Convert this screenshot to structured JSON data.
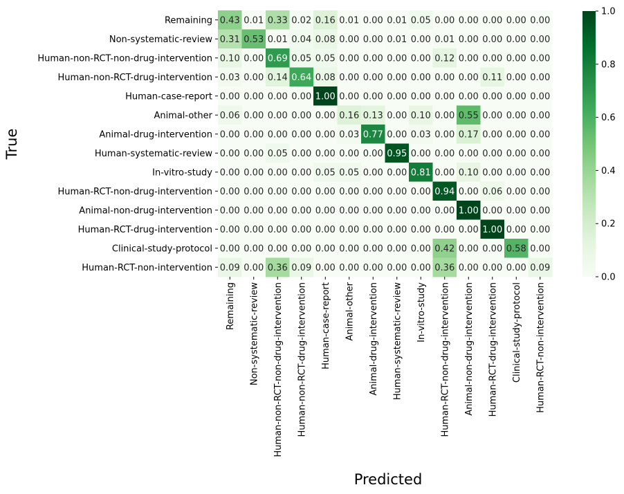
{
  "chart_data": {
    "type": "heatmap",
    "title": "",
    "xlabel": "Predicted",
    "ylabel": "True",
    "row_labels": [
      "Remaining",
      "Non-systematic-review",
      "Human-non-RCT-non-drug-intervention",
      "Human-non-RCT-drug-intervention",
      "Human-case-report",
      "Animal-other",
      "Animal-drug-intervention",
      "Human-systematic-review",
      "In-vitro-study",
      "Human-RCT-non-drug-intervention",
      "Animal-non-drug-intervention",
      "Human-RCT-drug-intervention",
      "Clinical-study-protocol",
      "Human-RCT-non-intervention"
    ],
    "col_labels": [
      "Remaining",
      "Non-systematic-review",
      "Human-non-RCT-non-drug-intervention",
      "Human-non-RCT-drug-intervention",
      "Human-case-report",
      "Animal-other",
      "Animal-drug-intervention",
      "Human-systematic-review",
      "In-vitro-study",
      "Human-RCT-non-drug-intervention",
      "Animal-non-drug-intervention",
      "Human-RCT-drug-intervention",
      "Clinical-study-protocol",
      "Human-RCT-non-intervention"
    ],
    "values": [
      [
        0.43,
        0.01,
        0.33,
        0.02,
        0.16,
        0.01,
        0.0,
        0.01,
        0.05,
        0.0,
        0.0,
        0.0,
        0.0,
        0.0
      ],
      [
        0.31,
        0.53,
        0.01,
        0.04,
        0.08,
        0.0,
        0.0,
        0.01,
        0.0,
        0.01,
        0.0,
        0.0,
        0.0,
        0.0
      ],
      [
        0.1,
        0.0,
        0.69,
        0.05,
        0.05,
        0.0,
        0.0,
        0.0,
        0.0,
        0.12,
        0.0,
        0.0,
        0.0,
        0.0
      ],
      [
        0.03,
        0.0,
        0.14,
        0.64,
        0.08,
        0.0,
        0.0,
        0.0,
        0.0,
        0.0,
        0.0,
        0.11,
        0.0,
        0.0
      ],
      [
        0.0,
        0.0,
        0.0,
        0.0,
        1.0,
        0.0,
        0.0,
        0.0,
        0.0,
        0.0,
        0.0,
        0.0,
        0.0,
        0.0
      ],
      [
        0.06,
        0.0,
        0.0,
        0.0,
        0.0,
        0.16,
        0.13,
        0.0,
        0.1,
        0.0,
        0.55,
        0.0,
        0.0,
        0.0
      ],
      [
        0.0,
        0.0,
        0.0,
        0.0,
        0.0,
        0.03,
        0.77,
        0.0,
        0.03,
        0.0,
        0.17,
        0.0,
        0.0,
        0.0
      ],
      [
        0.0,
        0.0,
        0.05,
        0.0,
        0.0,
        0.0,
        0.0,
        0.95,
        0.0,
        0.0,
        0.0,
        0.0,
        0.0,
        0.0
      ],
      [
        0.0,
        0.0,
        0.0,
        0.0,
        0.05,
        0.05,
        0.0,
        0.0,
        0.81,
        0.0,
        0.1,
        0.0,
        0.0,
        0.0
      ],
      [
        0.0,
        0.0,
        0.0,
        0.0,
        0.0,
        0.0,
        0.0,
        0.0,
        0.0,
        0.94,
        0.0,
        0.06,
        0.0,
        0.0
      ],
      [
        0.0,
        0.0,
        0.0,
        0.0,
        0.0,
        0.0,
        0.0,
        0.0,
        0.0,
        0.0,
        1.0,
        0.0,
        0.0,
        0.0
      ],
      [
        0.0,
        0.0,
        0.0,
        0.0,
        0.0,
        0.0,
        0.0,
        0.0,
        0.0,
        0.0,
        0.0,
        1.0,
        0.0,
        0.0
      ],
      [
        0.0,
        0.0,
        0.0,
        0.0,
        0.0,
        0.0,
        0.0,
        0.0,
        0.0,
        0.42,
        0.0,
        0.0,
        0.58,
        0.0
      ],
      [
        0.09,
        0.0,
        0.36,
        0.09,
        0.0,
        0.0,
        0.0,
        0.0,
        0.0,
        0.36,
        0.0,
        0.0,
        0.0,
        0.09
      ]
    ],
    "colorbar": {
      "colormap": "Greens",
      "range": [
        0.0,
        1.0
      ],
      "ticks": [
        "0.0",
        "0.2",
        "0.4",
        "0.6",
        "0.8",
        "1.0"
      ]
    },
    "grid": false,
    "legend": "colorbar-right"
  }
}
